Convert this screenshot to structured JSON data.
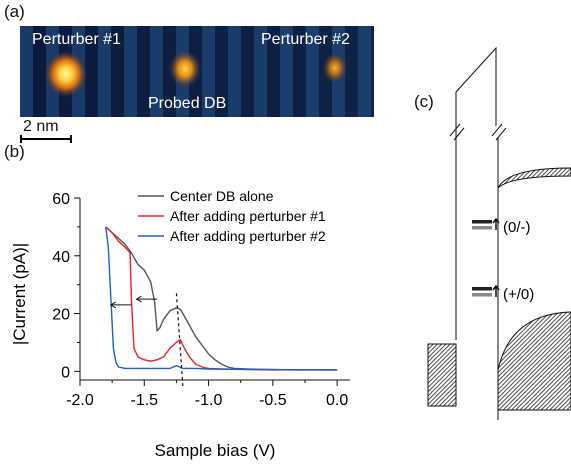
{
  "panel_labels": {
    "a": "(a)",
    "b": "(b)",
    "c": "(c)"
  },
  "stm_image": {
    "labels": {
      "perturber1": "Perturber #1",
      "perturber2": "Perturber #2",
      "probed": "Probed DB"
    },
    "scale_bar": "2 nm"
  },
  "chart_data": {
    "type": "line",
    "xlabel": "Sample bias (V)",
    "ylabel": "|Current (pA)|",
    "xlim": [
      -2.0,
      0.1
    ],
    "ylim": [
      -3,
      60
    ],
    "xticks": [
      -2.0,
      -1.5,
      -1.0,
      -0.5,
      0.0
    ],
    "xtick_labels": [
      "-2.0",
      "-1.5",
      "-1.0",
      "-0.5",
      "0.0"
    ],
    "yticks": [
      0,
      20,
      40,
      60
    ],
    "ytick_labels": [
      "0",
      "20",
      "40",
      "60"
    ],
    "legend_position": "top-right",
    "series": [
      {
        "name": "Center DB alone",
        "color": "#555555",
        "x": [
          -1.8,
          -1.75,
          -1.7,
          -1.65,
          -1.6,
          -1.55,
          -1.5,
          -1.45,
          -1.42,
          -1.4,
          -1.38,
          -1.35,
          -1.3,
          -1.25,
          -1.22,
          -1.2,
          -1.15,
          -1.1,
          -1.05,
          -1.0,
          -0.95,
          -0.9,
          -0.85,
          -0.8,
          -0.7,
          -0.5,
          -0.3,
          0.0
        ],
        "y": [
          50,
          48,
          46,
          44,
          41,
          37,
          35,
          31,
          24,
          14,
          15,
          18,
          21,
          22,
          21.5,
          20,
          16,
          12,
          9,
          6,
          4,
          2.5,
          1.5,
          1,
          0.8,
          0.6,
          0.5,
          0.5
        ]
      },
      {
        "name": "After adding perturber #1",
        "color": "#e8232a",
        "x": [
          -1.8,
          -1.75,
          -1.7,
          -1.65,
          -1.61,
          -1.6,
          -1.58,
          -1.55,
          -1.5,
          -1.45,
          -1.4,
          -1.35,
          -1.3,
          -1.25,
          -1.22,
          -1.2,
          -1.15,
          -1.1,
          -1.05,
          -1.0,
          -0.9,
          -0.7,
          -0.5,
          0.0
        ],
        "y": [
          50,
          48,
          45,
          43,
          41,
          25,
          8,
          5,
          4,
          3.5,
          4,
          5,
          8,
          10,
          11,
          9,
          5,
          2.5,
          1.5,
          1,
          0.8,
          0.6,
          0.5,
          0.5
        ]
      },
      {
        "name": "After adding perturber #2",
        "color": "#1f5fc6",
        "x": [
          -1.8,
          -1.78,
          -1.76,
          -1.74,
          -1.72,
          -1.7,
          -1.65,
          -1.6,
          -1.5,
          -1.4,
          -1.3,
          -1.25,
          -1.2,
          -1.1,
          -1.0,
          -0.5,
          0.0
        ],
        "y": [
          50,
          43,
          25,
          8,
          3,
          1.5,
          1,
          1,
          1,
          1,
          1,
          2,
          1,
          1,
          0.8,
          0.6,
          0.5
        ]
      }
    ]
  }
}
